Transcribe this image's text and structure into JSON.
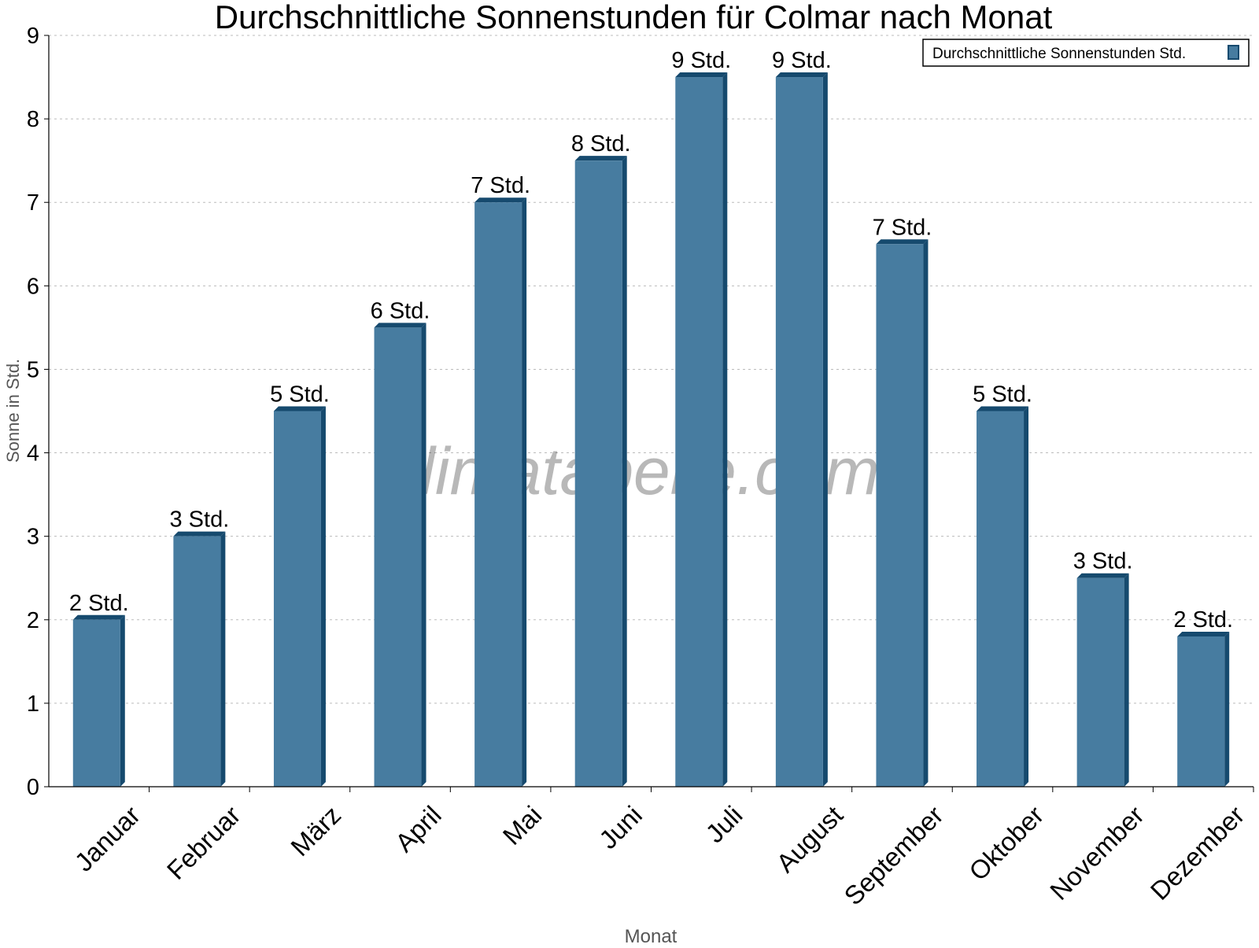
{
  "chart_data": {
    "type": "bar",
    "title": "Durchschnittliche Sonnenstunden für Colmar nach Monat",
    "xlabel": "Monat",
    "ylabel": "Sonne in Std.",
    "ylim": [
      0,
      9
    ],
    "yticks": [
      0,
      1,
      2,
      3,
      4,
      5,
      6,
      7,
      8,
      9
    ],
    "grid": true,
    "legend_position": "top-right",
    "categories": [
      "Januar",
      "Februar",
      "März",
      "April",
      "Mai",
      "Juni",
      "Juli",
      "August",
      "September",
      "Oktober",
      "November",
      "Dezember"
    ],
    "series": [
      {
        "name": "Durchschnittliche Sonnenstunden Std.",
        "values": [
          2.0,
          3.0,
          4.5,
          5.5,
          7.0,
          7.5,
          8.5,
          8.5,
          6.5,
          4.5,
          2.5,
          1.8
        ],
        "labels": [
          "2 Std.",
          "3 Std.",
          "5 Std.",
          "6 Std.",
          "7 Std.",
          "8 Std.",
          "9 Std.",
          "9 Std.",
          "7 Std.",
          "5 Std.",
          "3 Std.",
          "2 Std."
        ]
      }
    ],
    "colors": {
      "bar_face": "#477ca0",
      "bar_side": "#164a6e"
    },
    "watermark": "klimatabelle.com"
  }
}
